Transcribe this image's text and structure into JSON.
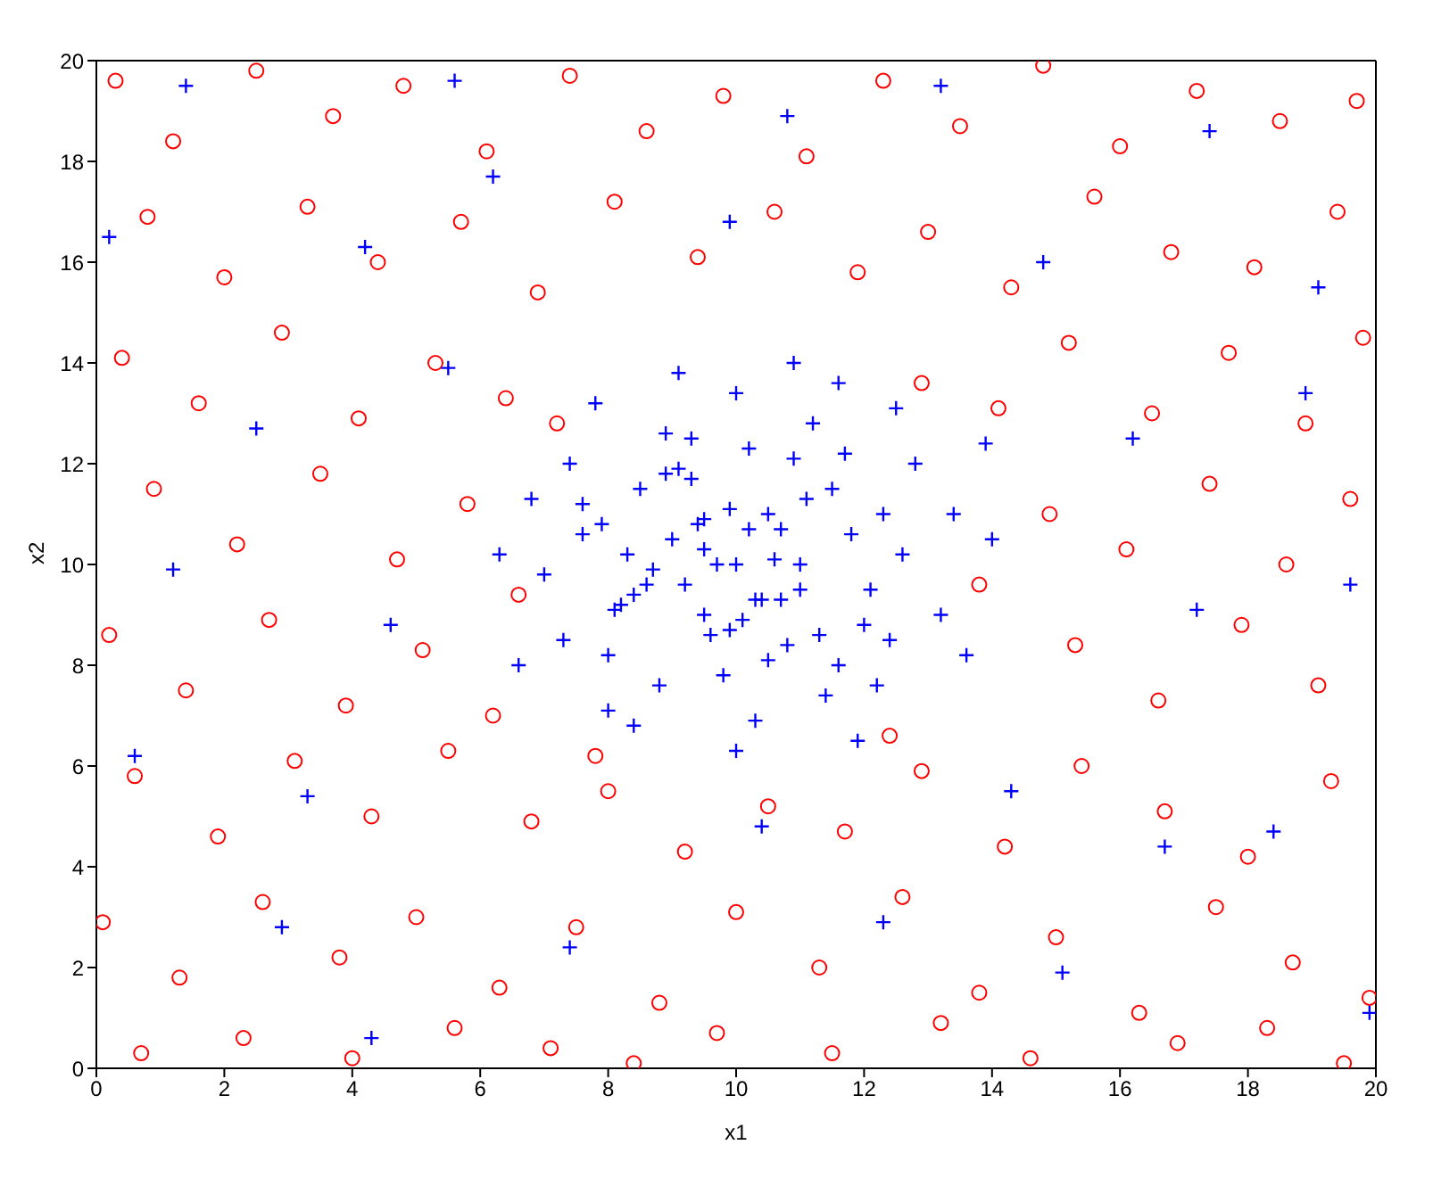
{
  "chart_data": {
    "type": "scatter",
    "xlabel": "x1",
    "ylabel": "x2",
    "xlim": [
      0,
      20
    ],
    "ylim": [
      0,
      20
    ],
    "xticks": [
      0,
      2,
      4,
      6,
      8,
      10,
      12,
      14,
      16,
      18,
      20
    ],
    "yticks": [
      0,
      2,
      4,
      6,
      8,
      10,
      12,
      14,
      16,
      18,
      20
    ],
    "grid": false,
    "legend": false,
    "series": [
      {
        "color": "#ff0000",
        "marker": "circle",
        "x": [
          0.3,
          1.2,
          2.5,
          3.7,
          4.8,
          6.1,
          7.4,
          8.6,
          9.8,
          11.1,
          12.3,
          13.5,
          14.8,
          16.0,
          17.2,
          18.5,
          19.7,
          0.8,
          2.0,
          3.3,
          4.4,
          5.7,
          6.9,
          8.1,
          9.4,
          10.6,
          11.9,
          13.0,
          14.3,
          15.6,
          16.8,
          18.1,
          19.4,
          0.4,
          1.6,
          2.9,
          4.1,
          5.3,
          6.4,
          14.1,
          15.2,
          16.5,
          17.7,
          18.9,
          19.8,
          0.9,
          2.2,
          3.5,
          4.7,
          5.8,
          14.9,
          16.1,
          17.4,
          18.6,
          19.6,
          0.2,
          1.4,
          2.7,
          3.9,
          5.1,
          6.2,
          15.3,
          16.6,
          17.9,
          19.1,
          0.6,
          1.9,
          3.1,
          4.3,
          5.5,
          6.8,
          8.0,
          9.2,
          10.5,
          11.7,
          12.9,
          14.2,
          15.4,
          16.7,
          18.0,
          19.3,
          0.1,
          1.3,
          2.6,
          3.8,
          5.0,
          6.3,
          7.5,
          8.8,
          10.0,
          11.3,
          12.6,
          13.8,
          15.0,
          16.3,
          17.5,
          18.7,
          19.9,
          0.7,
          2.3,
          4.0,
          5.6,
          7.1,
          8.4,
          9.7,
          11.5,
          13.2,
          14.6,
          16.9,
          18.3,
          19.5,
          7.2,
          12.9,
          6.6,
          13.8,
          7.8,
          12.4
        ],
        "values": [
          19.6,
          18.4,
          19.8,
          18.9,
          19.5,
          18.2,
          19.7,
          18.6,
          19.3,
          18.1,
          19.6,
          18.7,
          19.9,
          18.3,
          19.4,
          18.8,
          19.2,
          16.9,
          15.7,
          17.1,
          16.0,
          16.8,
          15.4,
          17.2,
          16.1,
          17.0,
          15.8,
          16.6,
          15.5,
          17.3,
          16.2,
          15.9,
          17.0,
          14.1,
          13.2,
          14.6,
          12.9,
          14.0,
          13.3,
          13.1,
          14.4,
          13.0,
          14.2,
          12.8,
          14.5,
          11.5,
          10.4,
          11.8,
          10.1,
          11.2,
          11.0,
          10.3,
          11.6,
          10.0,
          11.3,
          8.6,
          7.5,
          8.9,
          7.2,
          8.3,
          7.0,
          8.4,
          7.3,
          8.8,
          7.6,
          5.8,
          4.6,
          6.1,
          5.0,
          6.3,
          4.9,
          5.5,
          4.3,
          5.2,
          4.7,
          5.9,
          4.4,
          6.0,
          5.1,
          4.2,
          5.7,
          2.9,
          1.8,
          3.3,
          2.2,
          3.0,
          1.6,
          2.8,
          1.3,
          3.1,
          2.0,
          3.4,
          1.5,
          2.6,
          1.1,
          3.2,
          2.1,
          1.4,
          0.3,
          0.6,
          0.2,
          0.8,
          0.4,
          0.1,
          0.7,
          0.3,
          0.9,
          0.2,
          0.5,
          0.8,
          0.1,
          12.8,
          13.6,
          9.4,
          9.6,
          6.2,
          6.6
        ]
      },
      {
        "color": "#0000ff",
        "marker": "cross",
        "x": [
          10,
          9,
          11,
          10.5,
          9.5,
          8.5,
          11.5,
          8.2,
          12,
          10.2,
          9.8,
          7.6,
          12.6,
          8.9,
          11.2,
          8.8,
          11.4,
          7.3,
          12.8,
          7.4,
          13.2,
          10,
          10.3,
          7,
          13.4,
          9.3,
          10.8,
          9.6,
          11.8,
          8.3,
          10.6,
          9.2,
          8,
          12.2,
          6.8,
          13.6,
          9.1,
          11.6,
          8.4,
          11.9,
          10,
          6.6,
          14,
          7.8,
          12.5,
          10.9,
          6.3,
          13.9,
          9.5,
          10.4,
          8.7,
          11.1,
          9.9,
          10.1,
          1.4,
          5.6,
          10.8,
          17.4,
          0.2,
          4.2,
          9.9,
          14.8,
          19.1,
          2.5,
          5.5,
          16.2,
          18.9,
          1.2,
          4.6,
          17.2,
          19.6,
          0.6,
          3.3,
          16.7,
          18.4,
          2.9,
          7.4,
          12.3,
          15.1,
          19.9,
          4.3,
          10.4,
          14.3,
          6.2,
          13.2,
          9.4,
          10.7,
          8.6,
          11.3,
          9.1,
          10.9,
          8.1,
          12.3,
          9.7,
          10.5,
          8.9,
          11.6,
          7.9,
          12.1,
          9.3,
          10.2,
          11.0,
          8.4,
          9.9,
          12.4,
          10.7,
          7.6,
          8.0,
          11.7,
          9.5,
          10.3
        ],
        "values": [
          10,
          10.5,
          9.5,
          11,
          9,
          11.5,
          11.5,
          9.2,
          8.8,
          12.3,
          7.8,
          10.6,
          10.2,
          12.6,
          12.8,
          7.6,
          7.4,
          8.5,
          12,
          12,
          9,
          13.4,
          6.9,
          9.8,
          11,
          11.7,
          8.4,
          8.6,
          10.6,
          10.2,
          10.1,
          9.6,
          8.2,
          7.6,
          11.3,
          8.2,
          13.8,
          13.6,
          6.8,
          6.5,
          6.3,
          8,
          10.5,
          13.2,
          13.1,
          14,
          10.2,
          12.4,
          10.3,
          9.3,
          9.9,
          11.3,
          11.1,
          8.9,
          19.5,
          19.6,
          18.9,
          18.6,
          16.5,
          16.3,
          16.8,
          16,
          15.5,
          12.7,
          13.9,
          12.5,
          13.4,
          9.9,
          8.8,
          9.1,
          9.6,
          6.2,
          5.4,
          4.4,
          4.7,
          2.8,
          2.4,
          2.9,
          1.9,
          1.1,
          0.6,
          4.8,
          5.5,
          17.7,
          19.5,
          10.8,
          10.7,
          9.6,
          8.6,
          11.9,
          12.1,
          9.1,
          11.0,
          10.0,
          8.1,
          11.8,
          8.0,
          10.8,
          9.5,
          12.5,
          10.7,
          10.0,
          9.4,
          8.7,
          8.5,
          9.3,
          11.2,
          7.1,
          12.2,
          10.9,
          9.3
        ]
      }
    ]
  }
}
